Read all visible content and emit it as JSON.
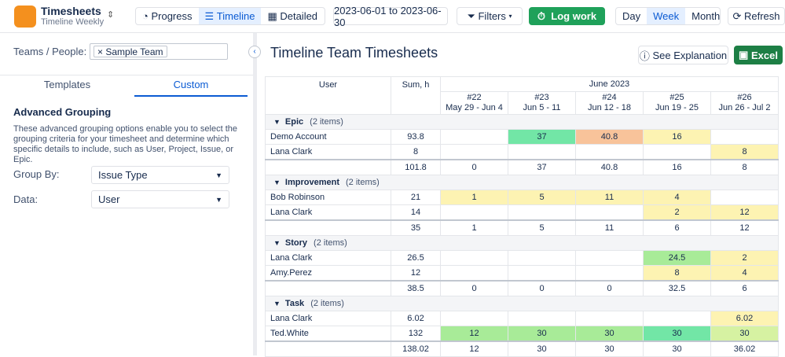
{
  "app": {
    "title": "Timesheets",
    "subtitle": "Timeline Weekly"
  },
  "toolbar": {
    "views": [
      "Progress",
      "Timeline",
      "Detailed"
    ],
    "date_range": "2023-06-01 to 2023-06-30",
    "filters": "Filters",
    "log_work": "Log work",
    "periods": [
      "Day",
      "Week",
      "Month"
    ],
    "refresh": "Refresh"
  },
  "sidebar": {
    "teams_label": "Teams / People:",
    "team_tag": "Sample Team",
    "tabs": [
      "Templates",
      "Custom"
    ],
    "section_title": "Advanced Grouping",
    "description": "These advanced grouping options enable you to select the grouping criteria for your timesheet and determine which specific details to include, such as User, Project, Issue, or Epic.",
    "group_by_label": "Group By:",
    "group_by_value": "Issue Type",
    "data_label": "Data:",
    "data_value": "User"
  },
  "main": {
    "title": "Timeline Team Timesheets",
    "explain": "See Explanation",
    "excel": "Excel"
  },
  "table": {
    "user_header": "User",
    "sum_header": "Sum, h",
    "month": "June 2023",
    "weeks": [
      {
        "num": "#22",
        "range": "May 29 - Jun 4"
      },
      {
        "num": "#23",
        "range": "Jun 5 - 11"
      },
      {
        "num": "#24",
        "range": "Jun 12 - 18"
      },
      {
        "num": "#25",
        "range": "Jun 19 - 25"
      },
      {
        "num": "#26",
        "range": "Jun 26 - Jul 2"
      }
    ],
    "groups": [
      {
        "name": "Epic",
        "count": "(2 items)",
        "rows": [
          {
            "user": "Demo Account",
            "sum": 93.8,
            "cells": [
              null,
              37,
              40.8,
              16,
              null
            ],
            "colors": [
              null,
              "#72e6a6",
              "#f8c39a",
              "#fdf3b2",
              null
            ]
          },
          {
            "user": "Lana Clark",
            "sum": 8,
            "cells": [
              null,
              null,
              null,
              null,
              8
            ],
            "colors": [
              null,
              null,
              null,
              null,
              "#fdf3b2"
            ]
          }
        ],
        "total": {
          "sum": 101.8,
          "cells": [
            0,
            37,
            40.8,
            16,
            8
          ]
        }
      },
      {
        "name": "Improvement",
        "count": "(2 items)",
        "rows": [
          {
            "user": "Bob Robinson",
            "sum": 21,
            "cells": [
              1,
              5,
              11,
              4,
              null
            ],
            "colors": [
              "#fdf3b2",
              "#fdf3b2",
              "#fdf3b2",
              "#fdf3b2",
              null
            ]
          },
          {
            "user": "Lana Clark",
            "sum": 14,
            "cells": [
              null,
              null,
              null,
              2,
              12
            ],
            "colors": [
              null,
              null,
              null,
              "#fdf3b2",
              "#fdf3b2"
            ]
          }
        ],
        "total": {
          "sum": 35,
          "cells": [
            1,
            5,
            11,
            6,
            12
          ]
        }
      },
      {
        "name": "Story",
        "count": "(2 items)",
        "rows": [
          {
            "user": "Lana Clark",
            "sum": 26.5,
            "cells": [
              null,
              null,
              null,
              24.5,
              2
            ],
            "colors": [
              null,
              null,
              null,
              "#a8eb98",
              "#fdf3b2"
            ]
          },
          {
            "user": "Amy.Perez",
            "sum": 12,
            "cells": [
              null,
              null,
              null,
              8,
              4
            ],
            "colors": [
              null,
              null,
              null,
              "#fdf3b2",
              "#fdf3b2"
            ]
          }
        ],
        "total": {
          "sum": 38.5,
          "cells": [
            0,
            0,
            0,
            32.5,
            6
          ]
        }
      },
      {
        "name": "Task",
        "count": "(2 items)",
        "rows": [
          {
            "user": "Lana Clark",
            "sum": 6.02,
            "cells": [
              null,
              null,
              null,
              null,
              6.02
            ],
            "colors": [
              null,
              null,
              null,
              null,
              "#fdf3b2"
            ]
          },
          {
            "user": "Ted.White",
            "sum": 132,
            "cells": [
              12,
              30,
              30,
              30,
              30
            ],
            "colors": [
              "#a8eb98",
              "#a8eb98",
              "#a8eb98",
              "#72e6a6",
              "#d6f2a2"
            ]
          }
        ],
        "total": {
          "sum": 138.02,
          "cells": [
            12,
            30,
            30,
            30,
            36.02
          ]
        }
      }
    ]
  }
}
